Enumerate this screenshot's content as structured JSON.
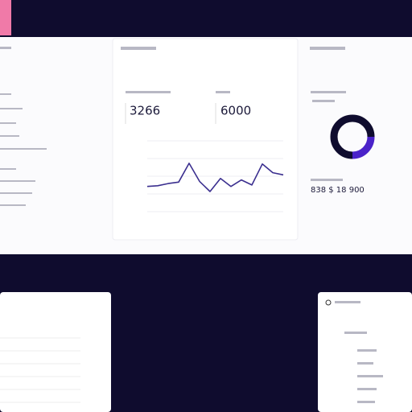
{
  "stats": {
    "first": "3266",
    "second": "6000",
    "third": "838 $ 18 900"
  },
  "chart": {
    "type": "line",
    "color": "#3b2f8f",
    "ylim": [
      0,
      100
    ],
    "values": [
      37,
      38,
      41,
      43,
      69,
      44,
      30,
      48,
      37,
      46,
      39,
      68,
      56,
      53
    ]
  },
  "donut": {
    "values": [
      25,
      75
    ],
    "colors": [
      "#4a22c9",
      "#0f0c2e"
    ]
  }
}
